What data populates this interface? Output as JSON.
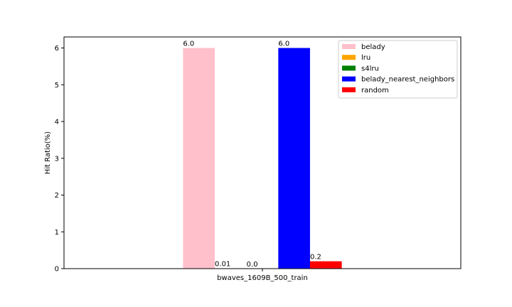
{
  "chart_data": {
    "type": "bar",
    "categories": [
      "bwaves_1609B_500_train"
    ],
    "xlabel": "bwaves_1609B_500_train",
    "ylabel": "Hit Ratio(%)",
    "title": "",
    "ylim": [
      0,
      6.3
    ],
    "yticks": [
      0,
      1,
      2,
      3,
      4,
      5,
      6
    ],
    "legend_position": "top-right",
    "grid": false,
    "series": [
      {
        "name": "belady",
        "values": [
          6.0
        ],
        "label": "6.0",
        "color": "#ffc0cb"
      },
      {
        "name": "lru",
        "values": [
          0.01
        ],
        "label": "0.01",
        "color": "#ffa500"
      },
      {
        "name": "s4lru",
        "values": [
          0.0
        ],
        "label": "0.0",
        "color": "#008000"
      },
      {
        "name": "belady_nearest_neighbors",
        "values": [
          6.0
        ],
        "label": "6.0",
        "color": "#0000ff"
      },
      {
        "name": "random",
        "values": [
          0.2
        ],
        "label": "0.2",
        "color": "#ff0000"
      }
    ]
  }
}
